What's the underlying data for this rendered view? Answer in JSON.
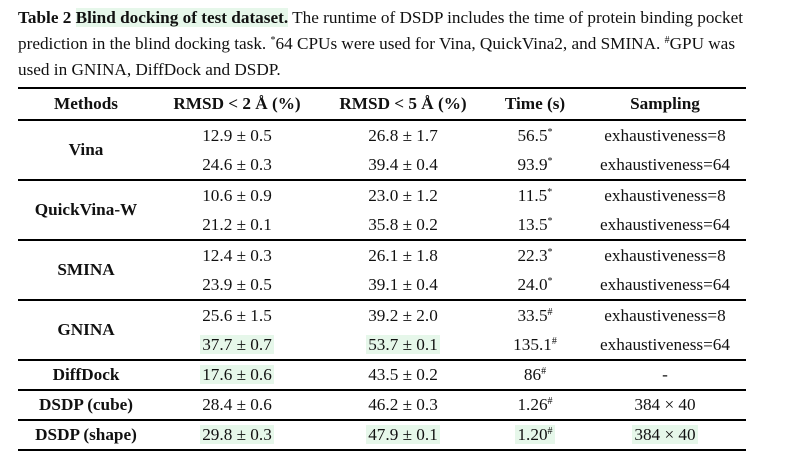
{
  "caption": {
    "title_prefix": "Table 2 ",
    "title_highlight": "Blind docking of test dataset.",
    "text_1": " The runtime of DSDP includes the time of protein binding pocket prediction in the blind docking task. ",
    "sup_1": "*",
    "text_2": "64 CPUs were used for Vina, QuickVina2, and SMINA. ",
    "sup_2": "#",
    "text_3": "GPU was used in GNINA, DiffDock and DSDP."
  },
  "headers": [
    "Methods",
    "RMSD < 2 Å (%)",
    "RMSD < 5 Å (%)",
    "Time (s)",
    "Sampling"
  ],
  "groups": [
    {
      "method": "Vina",
      "rows": [
        {
          "r2": "12.9 ± 0.5",
          "r5": "26.8 ± 1.7",
          "time": "56.5",
          "mark": "*",
          "sampling": "exhaustiveness=8"
        },
        {
          "r2": "24.6 ± 0.3",
          "r5": "39.4 ± 0.4",
          "time": "93.9",
          "mark": "*",
          "sampling": "exhaustiveness=64"
        }
      ]
    },
    {
      "method": "QuickVina-W",
      "rows": [
        {
          "r2": "10.6 ± 0.9",
          "r5": "23.0 ± 1.2",
          "time": "11.5",
          "mark": "*",
          "sampling": "exhaustiveness=8"
        },
        {
          "r2": "21.2 ± 0.1",
          "r5": "35.8 ± 0.2",
          "time": "13.5",
          "mark": "*",
          "sampling": "exhaustiveness=64"
        }
      ]
    },
    {
      "method": "SMINA",
      "rows": [
        {
          "r2": "12.4 ± 0.3",
          "r5": "26.1 ± 1.8",
          "time": "22.3",
          "mark": "*",
          "sampling": "exhaustiveness=8"
        },
        {
          "r2": "23.9 ± 0.5",
          "r5": "39.1 ± 0.4",
          "time": "24.0",
          "mark": "*",
          "sampling": "exhaustiveness=64"
        }
      ]
    },
    {
      "method": "GNINA",
      "rows": [
        {
          "r2": "25.6 ± 1.5",
          "r5": "39.2 ± 2.0",
          "time": "33.5",
          "mark": "#",
          "sampling": "exhaustiveness=8"
        },
        {
          "r2": "37.7 ± 0.7",
          "r5": "53.7 ± 0.1",
          "time": "135.1",
          "mark": "#",
          "sampling": "exhaustiveness=64"
        }
      ]
    }
  ],
  "singles": [
    {
      "method": "DiffDock",
      "r2": "17.6 ± 0.6",
      "r5": "43.5 ± 0.2",
      "time": "86",
      "mark": "#",
      "sampling": "-"
    },
    {
      "method": "DSDP (cube)",
      "r2": "28.4 ± 0.6",
      "r5": "46.2 ± 0.3",
      "time": "1.26",
      "mark": "#",
      "sampling": "384 × 40"
    },
    {
      "method": "DSDP (shape)",
      "r2": "29.8 ± 0.3",
      "r5": "47.9 ± 0.1",
      "time": "1.20",
      "mark": "#",
      "sampling": "384 × 40"
    }
  ],
  "highlight_color": "#e6f7ea"
}
